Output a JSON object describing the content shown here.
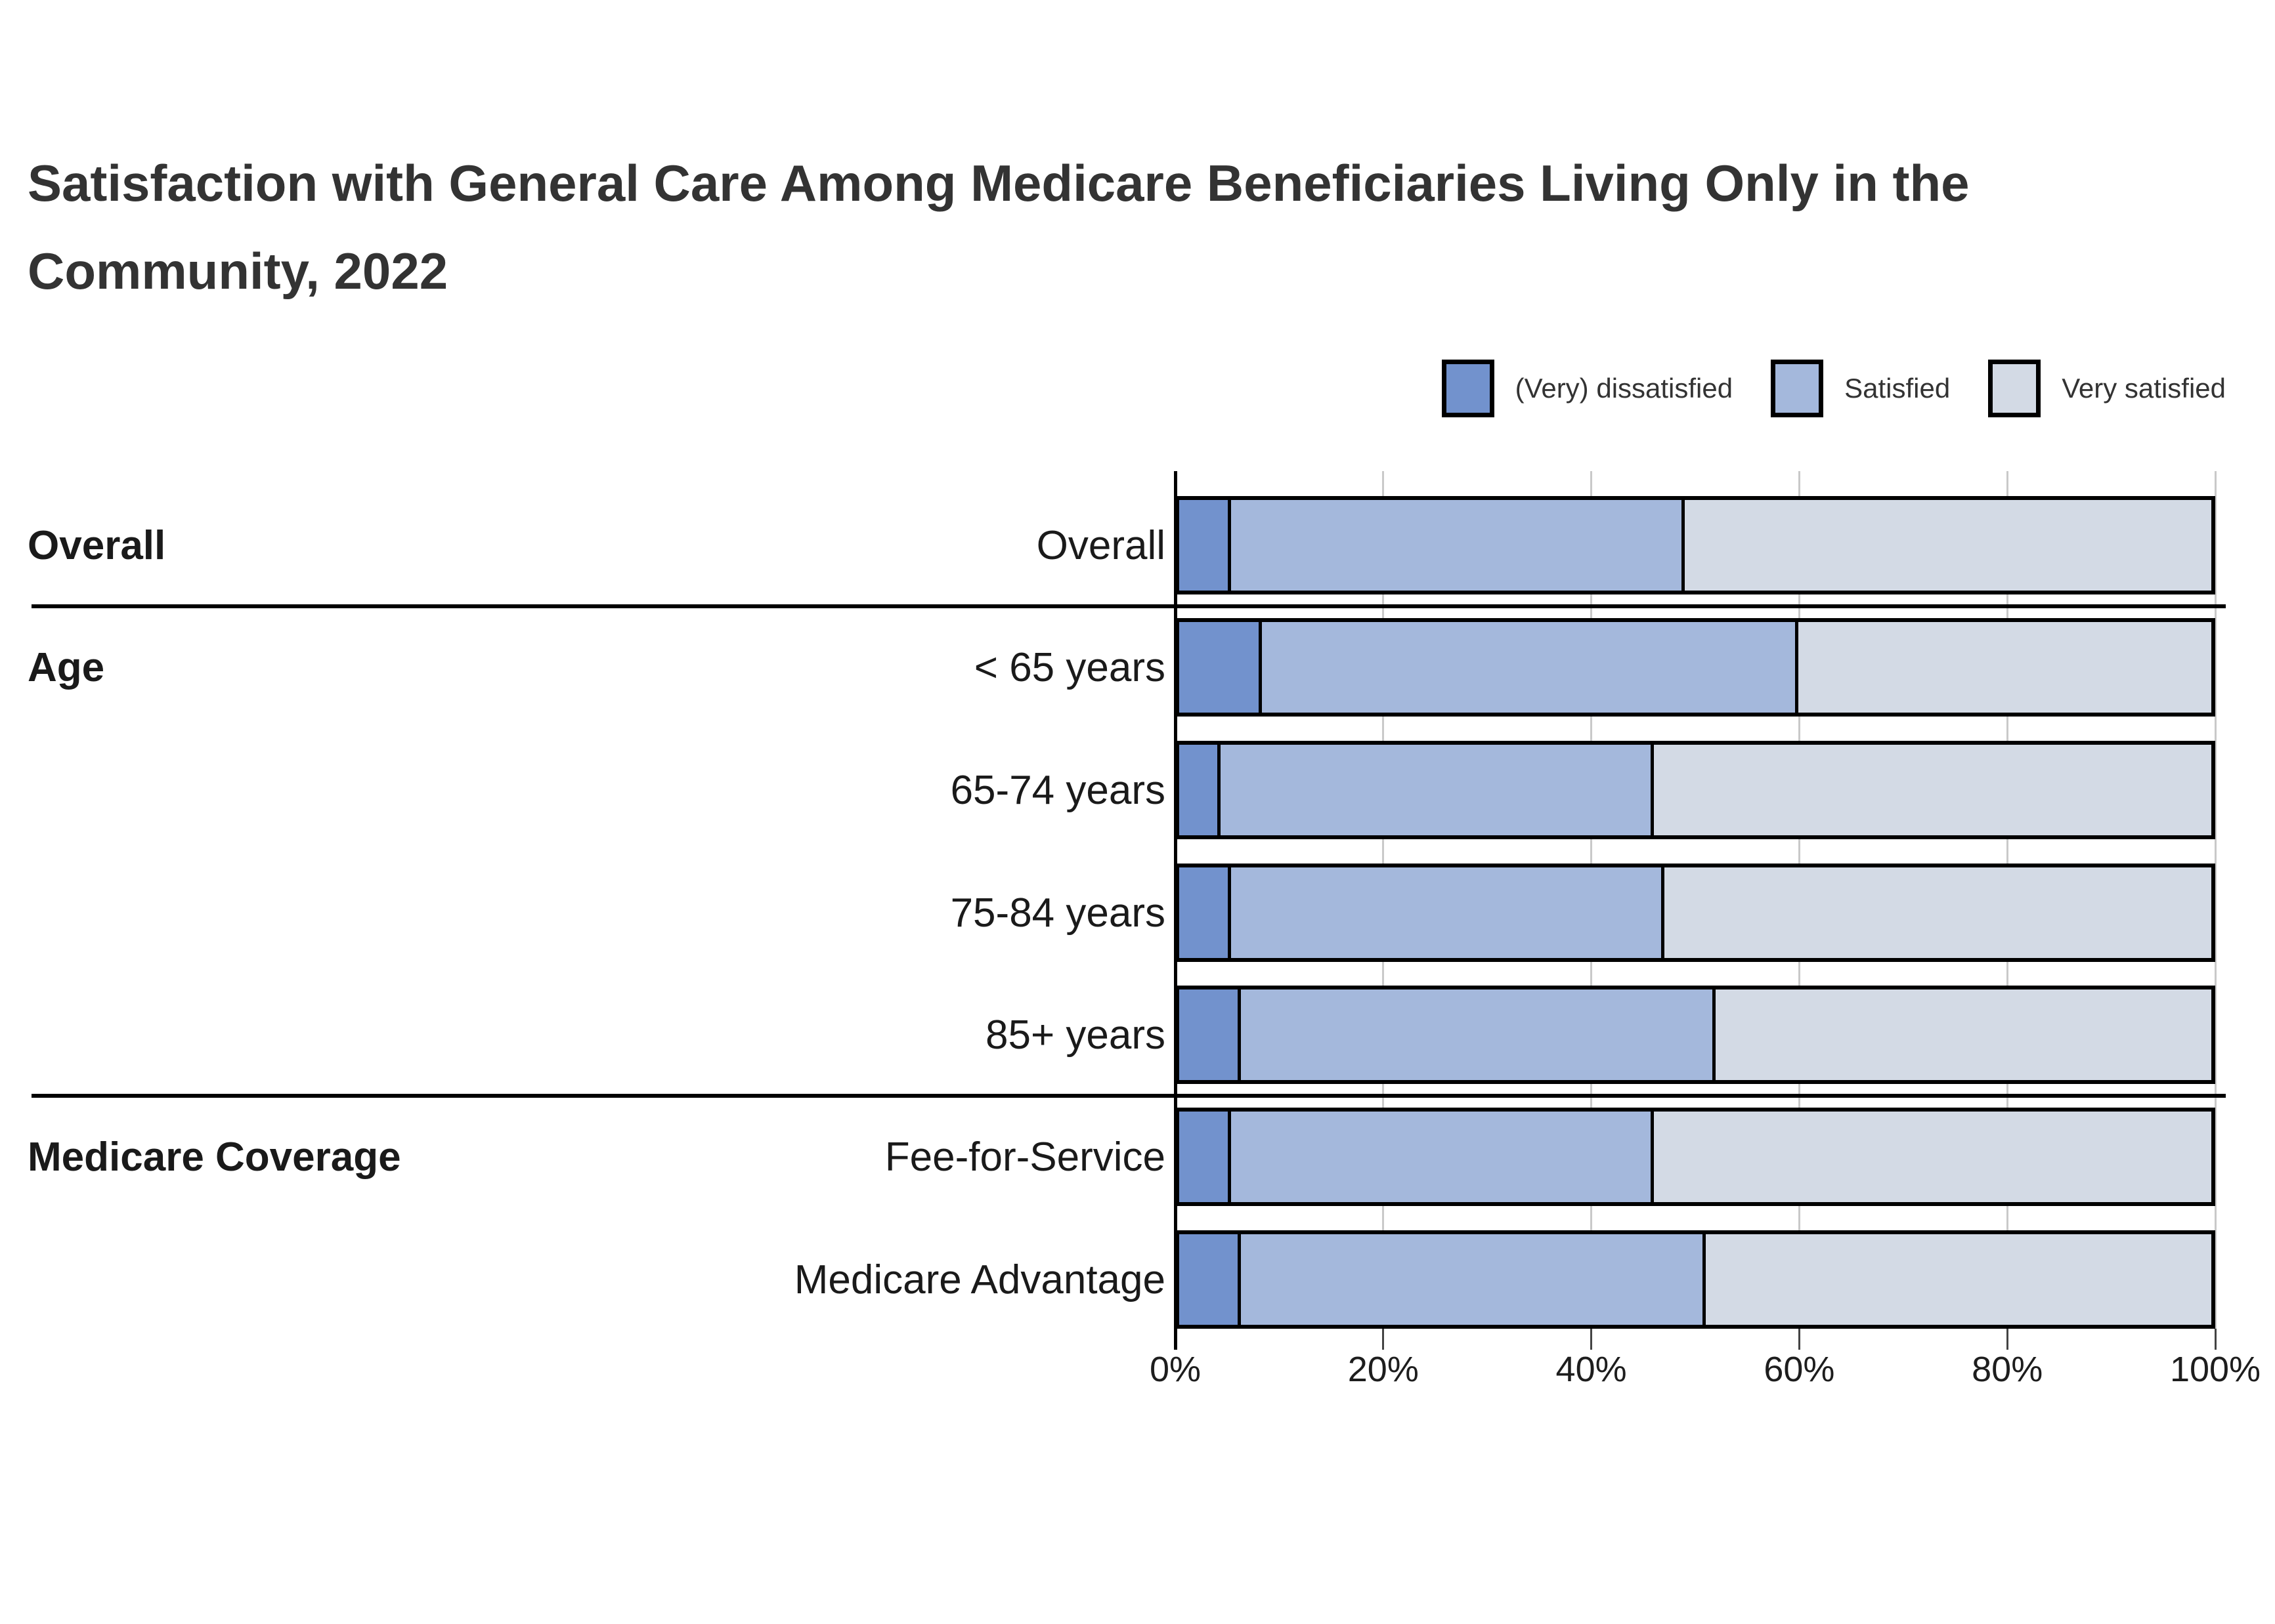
{
  "title": "Satisfaction with General Care Among Medicare Beneficiaries Living Only in the Community, 2022",
  "legend": [
    {
      "label": "(Very) dissatisfied",
      "color": "#7292CD"
    },
    {
      "label": "Satisfied",
      "color": "#A4B8DC"
    },
    {
      "label": "Very satisfied",
      "color": "#D3DAE5"
    }
  ],
  "chart_data": {
    "type": "bar",
    "orientation": "horizontal_stacked",
    "title": "Satisfaction with General Care Among Medicare Beneficiaries Living Only in the Community, 2022",
    "xlabel": "",
    "ylabel": "",
    "xlim": [
      0,
      100
    ],
    "x_ticks": [
      "0%",
      "20%",
      "40%",
      "60%",
      "80%",
      "100%"
    ],
    "grid": "vertical",
    "legend_position": "top-right",
    "series_names": [
      "(Very) dissatisfied",
      "Satisfied",
      "Very satisfied"
    ],
    "groups": [
      {
        "group": "Overall",
        "rows": [
          {
            "label": "Overall",
            "values": [
              5,
              44,
              51
            ]
          }
        ]
      },
      {
        "group": "Age",
        "rows": [
          {
            "label": "< 65 years",
            "values": [
              8,
              52,
              40
            ]
          },
          {
            "label": "65-74 years",
            "values": [
              4,
              42,
              54
            ]
          },
          {
            "label": "75-84 years",
            "values": [
              5,
              42,
              53
            ]
          },
          {
            "label": "85+ years",
            "values": [
              6,
              46,
              48
            ]
          }
        ]
      },
      {
        "group": "Medicare Coverage",
        "rows": [
          {
            "label": "Fee-for-Service",
            "values": [
              5,
              41,
              54
            ]
          },
          {
            "label": "Medicare Advantage",
            "values": [
              6,
              45,
              49
            ]
          }
        ]
      }
    ]
  }
}
